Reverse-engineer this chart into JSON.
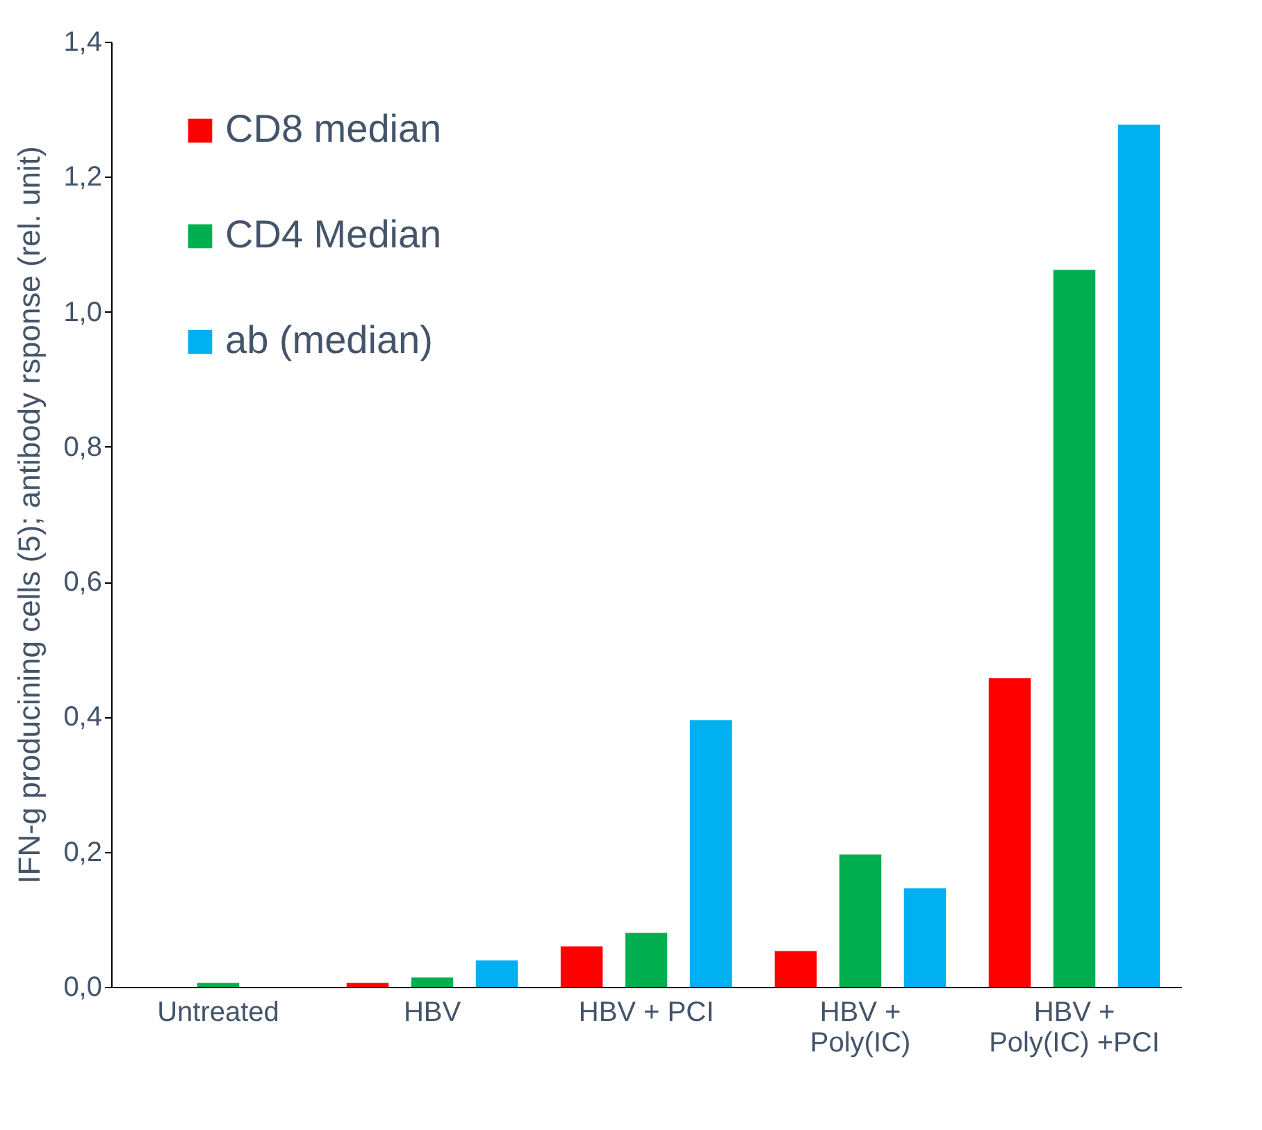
{
  "chart_data": {
    "type": "bar",
    "ylabel": "IFN-g producining cells (5); antibody rsponse (rel. unit)",
    "categories": [
      "Untreated",
      "HBV",
      "HBV + PCI",
      "HBV +\nPoly(IC)",
      "HBV +\nPoly(IC) +PCI"
    ],
    "series": [
      {
        "name": "CD8 median",
        "color": "#ff0000",
        "values": [
          0,
          0.006,
          0.06,
          0.053,
          0.457
        ]
      },
      {
        "name": "CD4 Median",
        "color": "#00b050",
        "values": [
          0.006,
          0.014,
          0.08,
          0.196,
          1.062
        ]
      },
      {
        "name": "ab (median)",
        "color": "#00b0f0",
        "values": [
          0,
          0.039,
          0.395,
          0.146,
          1.277
        ]
      }
    ],
    "ylim": [
      0,
      1.4
    ],
    "yticks": [
      {
        "value": 0,
        "label": "0,0"
      },
      {
        "value": 0.2,
        "label": "0,2"
      },
      {
        "value": 0.4,
        "label": "0,4"
      },
      {
        "value": 0.6,
        "label": "0,6"
      },
      {
        "value": 0.8,
        "label": "0,8"
      },
      {
        "value": 1,
        "label": "1,0"
      },
      {
        "value": 1.2,
        "label": "1,2"
      },
      {
        "value": 1.4,
        "label": "1,4"
      }
    ],
    "grid": false,
    "legend": "top left"
  }
}
